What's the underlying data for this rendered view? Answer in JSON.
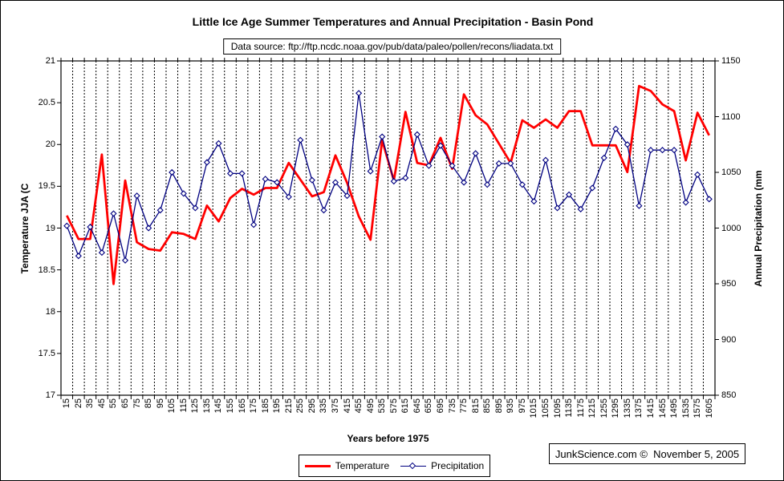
{
  "title": "Little Ice Age Summer Temperatures and Annual Precipitation - Basin Pond",
  "source_note": "Data source: ftp://ftp.ncdc.noaa.gov/pub/data/paleo/pollen/recons/liadata.txt",
  "branding": "JunkScience.com ©  November 5, 2005",
  "legend": {
    "temperature": "Temperature",
    "precipitation": "Precipitation"
  },
  "colors": {
    "temperature": "#ff0000",
    "precipitation": "#000080",
    "grid": "#000000",
    "frame": "#000000",
    "background": "#ffffff"
  },
  "chart_data": {
    "type": "line",
    "title": "Little Ice Age Summer Temperatures and Annual Precipitation - Basin Pond",
    "xlabel": "Years before 1975",
    "ylabel_left": "Temperature JJA (C",
    "ylabel_right": "Annual Precipitation (mm",
    "grid": "vertical-dashed",
    "legend_position": "bottom",
    "categories": [
      15,
      25,
      35,
      45,
      55,
      65,
      75,
      85,
      95,
      105,
      115,
      125,
      135,
      145,
      155,
      165,
      175,
      185,
      195,
      215,
      255,
      295,
      335,
      375,
      415,
      455,
      495,
      535,
      575,
      615,
      645,
      655,
      695,
      735,
      775,
      815,
      855,
      895,
      935,
      975,
      1015,
      1055,
      1095,
      1135,
      1175,
      1215,
      1255,
      1295,
      1335,
      1375,
      1415,
      1455,
      1495,
      1535,
      1575,
      1605
    ],
    "left_axis": {
      "min": 17,
      "max": 21,
      "ticks": [
        21,
        20.5,
        20,
        19.5,
        19,
        18.5,
        18,
        17.5,
        17
      ]
    },
    "right_axis": {
      "min": 850,
      "max": 1150,
      "ticks": [
        1150,
        1100,
        1050,
        1000,
        950,
        900,
        850
      ]
    },
    "series": [
      {
        "name": "Temperature",
        "axis": "left",
        "color": "#ff0000",
        "marker": "none",
        "values": [
          19.15,
          18.87,
          18.87,
          19.88,
          18.33,
          19.57,
          18.83,
          18.75,
          18.73,
          18.95,
          18.93,
          18.87,
          19.27,
          19.08,
          19.36,
          19.47,
          19.4,
          19.48,
          19.48,
          19.78,
          19.58,
          19.38,
          19.43,
          19.87,
          19.54,
          19.14,
          18.86,
          20.05,
          19.57,
          20.39,
          19.78,
          19.75,
          20.08,
          19.71,
          20.6,
          20.35,
          20.24,
          20.01,
          19.78,
          20.29,
          20.2,
          20.3,
          20.2,
          20.4,
          20.4,
          19.99,
          19.99,
          19.99,
          19.67,
          20.7,
          20.64,
          20.48,
          20.4,
          19.81,
          20.38,
          20.11
        ]
      },
      {
        "name": "Precipitation",
        "axis": "right",
        "color": "#000080",
        "marker": "diamond",
        "values": [
          1002,
          975,
          1001,
          978,
          1013,
          971,
          1029,
          1000,
          1016,
          1050,
          1031,
          1018,
          1059,
          1076,
          1049,
          1049,
          1003,
          1044,
          1041,
          1028,
          1079,
          1043,
          1016,
          1041,
          1029,
          1121,
          1051,
          1082,
          1042,
          1045,
          1084,
          1056,
          1074,
          1056,
          1041,
          1067,
          1039,
          1058,
          1058,
          1039,
          1024,
          1061,
          1018,
          1030,
          1017,
          1036,
          1063,
          1089,
          1075,
          1020,
          1070,
          1070,
          1070,
          1023,
          1048,
          1026
        ]
      }
    ]
  }
}
